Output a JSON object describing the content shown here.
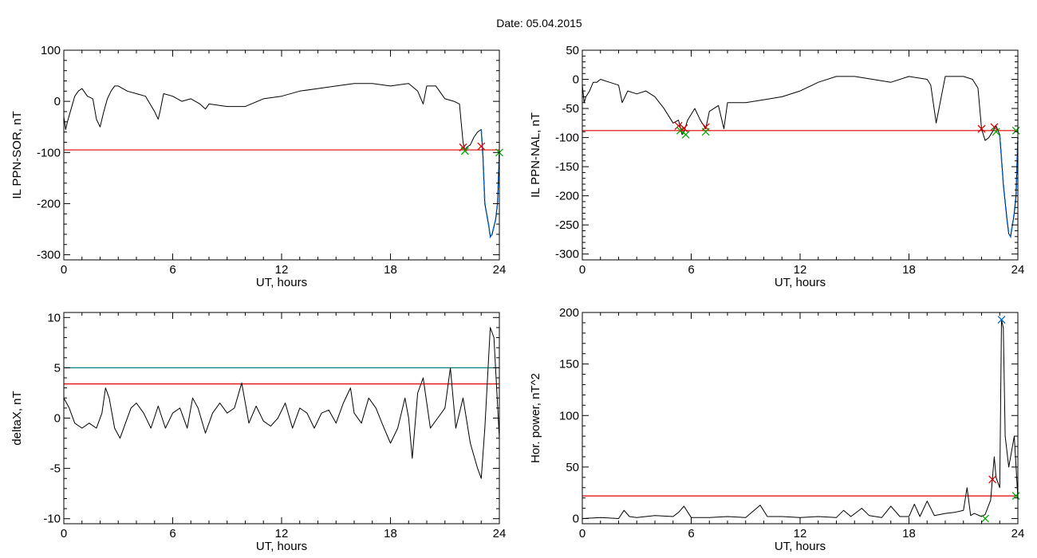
{
  "header": {
    "date_label": "Date:  05.04.2015"
  },
  "colors": {
    "data": "#000000",
    "threshold": "#e00000",
    "threshold2": "#008080",
    "event": "#0066cc",
    "marker_red": "#e00000",
    "marker_green": "#00aa00",
    "marker_blue": "#0066cc"
  },
  "chart_data": [
    {
      "type": "line",
      "title": "",
      "xlabel": "UT, hours",
      "ylabel": "IL PPN-SOR, nT",
      "xlim": [
        0,
        24
      ],
      "ylim": [
        -310,
        100
      ],
      "xticks": [
        0,
        6,
        12,
        18,
        24
      ],
      "xtick_labels": [
        "0",
        "6",
        "12",
        "18",
        "24"
      ],
      "yticks": [
        100,
        0,
        -100,
        -200,
        -300
      ],
      "ytick_labels": [
        "100",
        "0",
        "-100",
        "-200",
        "-300"
      ],
      "thresholds": [
        {
          "y": -95,
          "color": "#e00000"
        }
      ],
      "series": [
        {
          "x": [
            0,
            0.1,
            0.2,
            0.4,
            0.6,
            0.8,
            1.0,
            1.3,
            1.6,
            1.8,
            2.0,
            2.2,
            2.4,
            2.6,
            2.8,
            3.0,
            3.5,
            4.0,
            4.5,
            5.0,
            5.2,
            5.3,
            5.5,
            6.0,
            6.5,
            7.0,
            7.5,
            7.8,
            8.0,
            9.0,
            10.0,
            11.0,
            12.0,
            13.0,
            14.0,
            15.0,
            16.0,
            17.0,
            18.0,
            19.0,
            19.5,
            19.8,
            20.0,
            20.5,
            21.0,
            21.5,
            21.8,
            22.0,
            22.1,
            22.2,
            22.4,
            22.6,
            22.8,
            23.0,
            23.1,
            23.2,
            23.4,
            23.5,
            23.6,
            23.8,
            23.9,
            24.0
          ],
          "y": [
            -30,
            -55,
            -40,
            -15,
            10,
            20,
            25,
            10,
            5,
            -35,
            -50,
            -20,
            5,
            20,
            30,
            30,
            20,
            15,
            10,
            -20,
            -35,
            -20,
            15,
            10,
            0,
            5,
            -5,
            -15,
            -5,
            -10,
            -10,
            5,
            10,
            20,
            25,
            30,
            35,
            35,
            30,
            35,
            20,
            -5,
            30,
            30,
            5,
            0,
            -5,
            -80,
            -95,
            -90,
            -85,
            -70,
            -60,
            -55,
            -110,
            -200,
            -240,
            -265,
            -260,
            -230,
            -200,
            -100
          ]
        }
      ],
      "markers": [
        {
          "x": 22.0,
          "y": -90,
          "type": "x",
          "color": "#e00000"
        },
        {
          "x": 22.1,
          "y": -97,
          "type": "x",
          "color": "#00aa00"
        },
        {
          "x": 23.0,
          "y": -88,
          "type": "x",
          "color": "#e00000"
        },
        {
          "x": 24.0,
          "y": -100,
          "type": "x",
          "color": "#00aa00"
        }
      ],
      "event_span": [
        23.0,
        24.0
      ]
    },
    {
      "type": "line",
      "title": "",
      "xlabel": "UT, hours",
      "ylabel": "IL PPN-NAL, nT",
      "xlim": [
        0,
        24
      ],
      "ylim": [
        -310,
        50
      ],
      "xticks": [
        0,
        6,
        12,
        18,
        24
      ],
      "xtick_labels": [
        "0",
        "6",
        "12",
        "18",
        "24"
      ],
      "yticks": [
        50,
        0,
        -50,
        -100,
        -150,
        -200,
        -250,
        -300
      ],
      "ytick_labels": [
        "50",
        "0",
        "-50",
        "-100",
        "-150",
        "-200",
        "-250",
        "-300"
      ],
      "thresholds": [
        {
          "y": -88,
          "color": "#e00000"
        }
      ],
      "series": [
        {
          "x": [
            0,
            0.1,
            0.2,
            0.4,
            0.6,
            0.8,
            1.0,
            1.5,
            2.0,
            2.2,
            2.5,
            3.0,
            3.5,
            4.0,
            4.5,
            5.0,
            5.3,
            5.5,
            5.6,
            5.8,
            6.0,
            6.2,
            6.5,
            6.8,
            7.0,
            7.5,
            7.8,
            8.0,
            9.0,
            10.0,
            11.0,
            12.0,
            13.0,
            14.0,
            15.0,
            16.0,
            17.0,
            18.0,
            19.0,
            19.2,
            19.5,
            20.0,
            21.0,
            21.5,
            21.8,
            22.0,
            22.2,
            22.4,
            22.6,
            22.8,
            23.0,
            23.2,
            23.4,
            23.5,
            23.6,
            23.8,
            23.9,
            24.0
          ],
          "y": [
            -10,
            -40,
            -30,
            -20,
            -5,
            -5,
            0,
            -5,
            -10,
            -40,
            -20,
            -25,
            -20,
            -30,
            -50,
            -75,
            -70,
            -95,
            -90,
            -70,
            -60,
            -50,
            -70,
            -85,
            -55,
            -45,
            -85,
            -40,
            -40,
            -35,
            -30,
            -20,
            -5,
            5,
            5,
            0,
            -5,
            5,
            0,
            -10,
            -75,
            5,
            5,
            0,
            -15,
            -85,
            -105,
            -100,
            -90,
            -80,
            -95,
            -180,
            -240,
            -265,
            -270,
            -230,
            -200,
            -100
          ]
        }
      ],
      "markers": [
        {
          "x": 5.3,
          "y": -80,
          "type": "x",
          "color": "#e00000"
        },
        {
          "x": 5.4,
          "y": -88,
          "type": "x",
          "color": "#00aa00"
        },
        {
          "x": 5.6,
          "y": -84,
          "type": "x",
          "color": "#e00000"
        },
        {
          "x": 5.7,
          "y": -95,
          "type": "x",
          "color": "#00aa00"
        },
        {
          "x": 6.8,
          "y": -82,
          "type": "x",
          "color": "#e00000"
        },
        {
          "x": 6.8,
          "y": -90,
          "type": "x",
          "color": "#00aa00"
        },
        {
          "x": 22.0,
          "y": -85,
          "type": "x",
          "color": "#e00000"
        },
        {
          "x": 22.7,
          "y": -82,
          "type": "x",
          "color": "#e00000"
        },
        {
          "x": 22.8,
          "y": -90,
          "type": "x",
          "color": "#00aa00"
        },
        {
          "x": 23.9,
          "y": -88,
          "type": "x",
          "color": "#00aa00"
        }
      ],
      "event_span": [
        23.0,
        24.0
      ]
    },
    {
      "type": "line",
      "title": "",
      "xlabel": "UT, hours",
      "ylabel": "deltaX, nT",
      "xlim": [
        0,
        24
      ],
      "ylim": [
        -10.5,
        10.5
      ],
      "xticks": [
        0,
        6,
        12,
        18,
        24
      ],
      "xtick_labels": [
        "0",
        "6",
        "12",
        "18",
        "24"
      ],
      "yticks": [
        10,
        5,
        0,
        -5,
        -10
      ],
      "ytick_labels": [
        "10",
        "5",
        "0",
        "-5",
        "-10"
      ],
      "thresholds": [
        {
          "y": 5.0,
          "color": "#008080"
        },
        {
          "y": 3.4,
          "color": "#e00000"
        }
      ],
      "series": [
        {
          "x": [
            0,
            0.3,
            0.6,
            1.0,
            1.4,
            1.8,
            2.1,
            2.3,
            2.5,
            2.8,
            3.1,
            3.4,
            3.7,
            4.0,
            4.4,
            4.8,
            5.2,
            5.6,
            6.0,
            6.4,
            6.8,
            7.1,
            7.4,
            7.8,
            8.2,
            8.6,
            9.0,
            9.4,
            9.8,
            10.2,
            10.6,
            11.0,
            11.4,
            11.8,
            12.2,
            12.6,
            13.0,
            13.4,
            13.8,
            14.2,
            14.6,
            15.0,
            15.4,
            15.8,
            16.0,
            16.4,
            16.8,
            17.2,
            17.6,
            18.0,
            18.4,
            18.8,
            19.0,
            19.2,
            19.5,
            19.8,
            20.2,
            20.6,
            21.0,
            21.3,
            21.6,
            22.0,
            22.4,
            22.8,
            23.0,
            23.2,
            23.5,
            23.7,
            24.0
          ],
          "y": [
            2,
            1,
            -0.5,
            -1,
            -0.5,
            -1,
            0.5,
            3,
            2,
            -1,
            -2,
            -0.5,
            1,
            1.5,
            0.5,
            -1,
            1.2,
            -1,
            0.5,
            1,
            -1,
            2,
            1,
            -1.5,
            0.5,
            1.5,
            0.5,
            1,
            3.5,
            -0.5,
            1.2,
            -0.3,
            -0.8,
            0,
            1.5,
            -1,
            1,
            0.5,
            -1,
            0.5,
            0.8,
            -0.5,
            1.5,
            3,
            0.5,
            -0.5,
            2,
            1,
            -0.8,
            -2.5,
            -1,
            2,
            0,
            -4,
            2.5,
            4,
            -1,
            0,
            1,
            5,
            -1,
            2,
            -2.5,
            -5,
            -6,
            -1,
            9,
            8,
            -2
          ]
        }
      ],
      "markers": []
    },
    {
      "type": "line",
      "title": "",
      "xlabel": "UT, hours",
      "ylabel": "Hor. power, nT^2",
      "xlim": [
        0,
        24
      ],
      "ylim": [
        -5,
        200
      ],
      "xticks": [
        0,
        6,
        12,
        18,
        24
      ],
      "xtick_labels": [
        "0",
        "6",
        "12",
        "18",
        "24"
      ],
      "yticks": [
        200,
        150,
        100,
        50,
        0
      ],
      "ytick_labels": [
        "200",
        "150",
        "100",
        "50",
        "0"
      ],
      "thresholds": [
        {
          "y": 22,
          "color": "#e00000"
        }
      ],
      "series": [
        {
          "x": [
            0,
            1,
            2,
            2.3,
            2.6,
            3,
            4,
            5,
            5.3,
            5.6,
            6,
            7,
            8,
            9,
            9.8,
            10.2,
            11,
            12,
            13,
            14,
            14.4,
            14.8,
            15.4,
            15.8,
            16.5,
            17,
            17.5,
            18,
            18.3,
            18.6,
            19,
            19.4,
            20,
            20.5,
            21,
            21.2,
            21.4,
            21.6,
            22,
            22.2,
            22.5,
            22.7,
            22.8,
            23,
            23.1,
            23.2,
            23.3,
            23.5,
            23.8,
            24
          ],
          "y": [
            0,
            1,
            0,
            8,
            2,
            1,
            3,
            2,
            6,
            12,
            1,
            1,
            2,
            1,
            13,
            2,
            2,
            1,
            2,
            1,
            8,
            2,
            10,
            3,
            1,
            12,
            2,
            2,
            14,
            2,
            17,
            3,
            5,
            6,
            8,
            30,
            3,
            5,
            2,
            4,
            18,
            60,
            40,
            30,
            193,
            185,
            80,
            50,
            80,
            20
          ]
        }
      ],
      "markers": [
        {
          "x": 22.6,
          "y": 38,
          "type": "x",
          "color": "#e00000"
        },
        {
          "x": 23.1,
          "y": 193,
          "type": "x",
          "color": "#0066cc"
        },
        {
          "x": 22.2,
          "y": 0,
          "type": "x",
          "color": "#00aa00"
        },
        {
          "x": 23.9,
          "y": 22,
          "type": "x",
          "color": "#00aa00"
        }
      ]
    }
  ]
}
